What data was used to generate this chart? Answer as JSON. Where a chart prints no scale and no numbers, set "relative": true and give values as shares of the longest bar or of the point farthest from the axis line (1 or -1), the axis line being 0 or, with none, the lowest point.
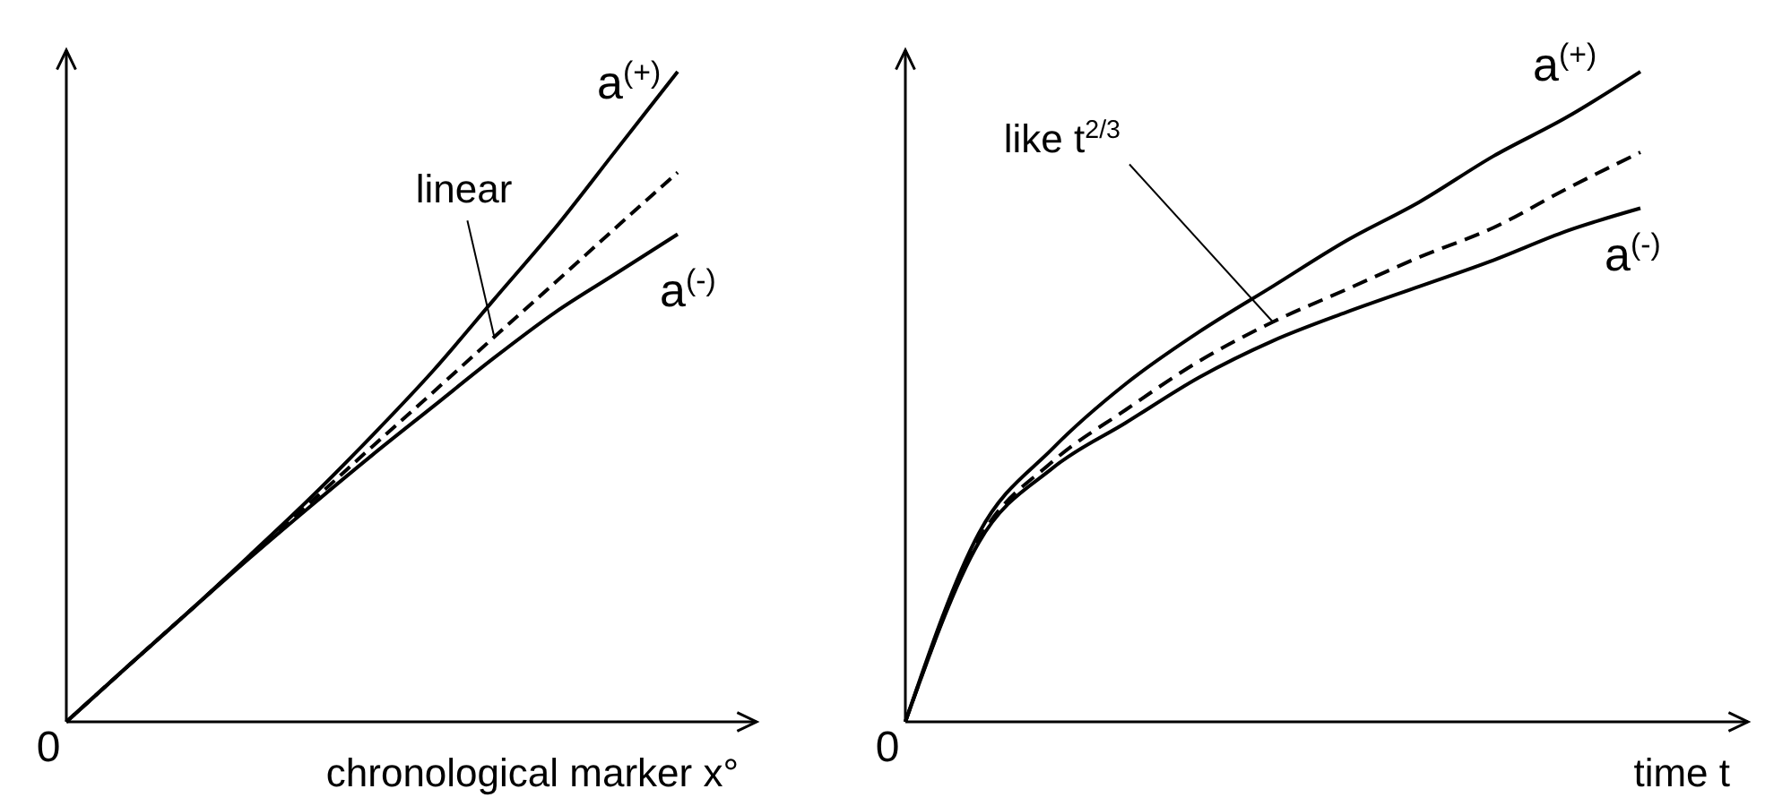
{
  "chart_data": [
    {
      "type": "line",
      "relative": true,
      "xlabel": "chronological marker x°",
      "categories": [
        null,
        null,
        null,
        null,
        null,
        null,
        null,
        null,
        null,
        null,
        null,
        null
      ],
      "annotations": [
        "0",
        "linear"
      ],
      "series": [
        {
          "name": "a$^{(+)}$",
          "color": "#000000",
          "line_style": "solid",
          "values": [
            0,
            0.085,
            0.169,
            0.256,
            0.345,
            0.44,
            0.54,
            0.65,
            0.76,
            0.88,
            1.0,
            null
          ]
        },
        {
          "color": "#000000",
          "line_style": "dashed",
          "values": [
            0,
            0.085,
            0.169,
            0.254,
            0.338,
            0.423,
            0.507,
            0.592,
            0.676,
            0.761,
            0.845,
            null
          ]
        },
        {
          "name": "a$^{(-)}$",
          "color": "#000000",
          "line_style": "solid",
          "values": [
            0,
            0.085,
            0.169,
            0.252,
            0.332,
            0.41,
            0.485,
            0.56,
            0.63,
            0.69,
            0.75,
            null
          ]
        }
      ]
    },
    {
      "type": "line",
      "relative": true,
      "xlabel": "time t",
      "categories": [
        null,
        null,
        null,
        null,
        null,
        null,
        null,
        null,
        null,
        null,
        null,
        null
      ],
      "annotations": [
        "0",
        "like t$^{2/3}$"
      ],
      "series": [
        {
          "name": "a$^{(+)}$",
          "color": "#000000",
          "line_style": "solid",
          "values": [
            0,
            0.29,
            0.42,
            0.52,
            0.6,
            0.67,
            0.74,
            0.8,
            0.87,
            0.93,
            1.0,
            null
          ]
        },
        {
          "color": "#000000",
          "line_style": "dashed",
          "values": [
            0,
            0.28,
            0.4,
            0.48,
            0.555,
            0.615,
            0.665,
            0.715,
            0.76,
            0.82,
            0.876,
            null
          ]
        },
        {
          "name": "a$^{(-)}$",
          "color": "#000000",
          "line_style": "solid",
          "values": [
            0,
            0.276,
            0.39,
            0.46,
            0.53,
            0.586,
            0.63,
            0.67,
            0.71,
            0.755,
            0.79,
            null
          ]
        }
      ]
    }
  ]
}
